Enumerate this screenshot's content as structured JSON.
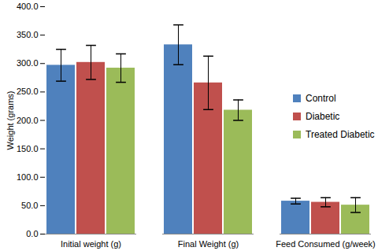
{
  "chart_data": {
    "type": "bar",
    "categories": [
      "Initial weight (g)",
      "Final Weight (g)",
      "Feed Consumed (g/week)"
    ],
    "series": [
      {
        "name": "Control",
        "color": "#4f81bd",
        "values": [
          297,
          333,
          58
        ],
        "errors": [
          28,
          35,
          5
        ]
      },
      {
        "name": "Diabetic",
        "color": "#c0504d",
        "values": [
          302,
          266,
          56
        ],
        "errors": [
          30,
          47,
          8
        ]
      },
      {
        "name": "Treated Diabetic",
        "color": "#9bbb59",
        "values": [
          292,
          218,
          51
        ],
        "errors": [
          25,
          18,
          13
        ]
      }
    ],
    "y_label": "Weight (grams)",
    "ylim": [
      0,
      400
    ],
    "yticks": [
      {
        "value": 0,
        "label": "0.0"
      },
      {
        "value": 50,
        "label": "50.0"
      },
      {
        "value": 100,
        "label": "100.0"
      },
      {
        "value": 150,
        "label": "150.0"
      },
      {
        "value": 200,
        "label": "200.0"
      },
      {
        "value": 250,
        "label": "250.0"
      },
      {
        "value": 300,
        "label": "300.0"
      },
      {
        "value": 350,
        "label": "350.0"
      },
      {
        "value": 400,
        "label": "400.0"
      }
    ],
    "grid": false,
    "legend": "right"
  }
}
